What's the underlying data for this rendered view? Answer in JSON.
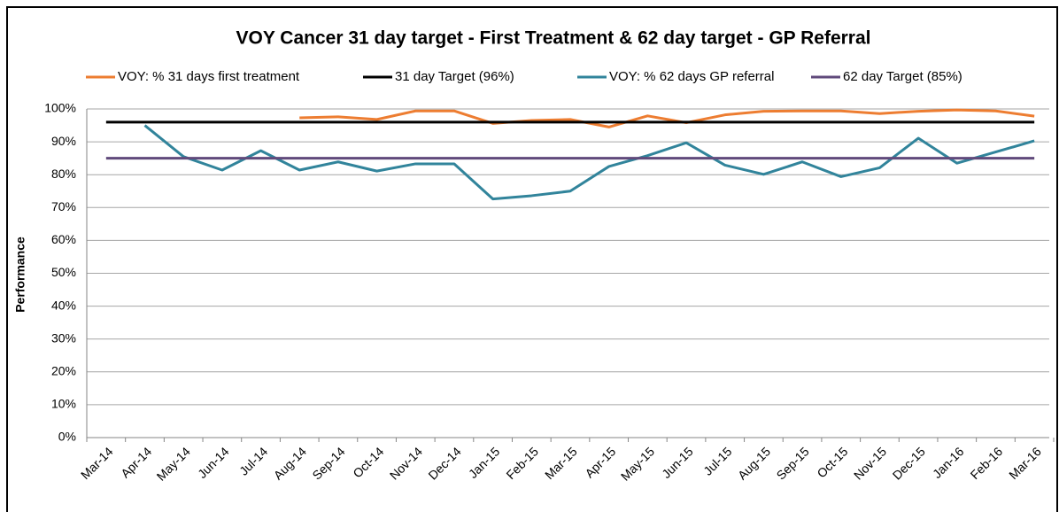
{
  "chart_data": {
    "type": "line",
    "title": "VOY Cancer 31 day target - First Treatment & 62 day target - GP Referral",
    "y_label": "Performance",
    "categories": [
      "Mar-14",
      "Apr-14",
      "May-14",
      "Jun-14",
      "Jul-14",
      "Aug-14",
      "Sep-14",
      "Oct-14",
      "Nov-14",
      "Dec-14",
      "Jan-15",
      "Feb-15",
      "Mar-15",
      "Apr-15",
      "May-15",
      "Jun-15",
      "Jul-15",
      "Aug-15",
      "Sep-15",
      "Oct-15",
      "Nov-15",
      "Dec-15",
      "Jan-16",
      "Feb-16",
      "Mar-16"
    ],
    "series": [
      {
        "name": "VOY: % 31 days first treatment",
        "color": "#ed7d31",
        "values": [
          null,
          null,
          null,
          null,
          null,
          97.3,
          97.6,
          96.8,
          99.4,
          99.4,
          95.6,
          96.5,
          96.8,
          94.5,
          97.9,
          95.8,
          98.2,
          99.3,
          99.4,
          99.4,
          98.6,
          99.3,
          99.7,
          99.4,
          97.8
        ]
      },
      {
        "name": "31 day Target (96%)",
        "color": "#000000",
        "values": [
          96,
          96,
          96,
          96,
          96,
          96,
          96,
          96,
          96,
          96,
          96,
          96,
          96,
          96,
          96,
          96,
          96,
          96,
          96,
          96,
          96,
          96,
          96,
          96,
          96
        ]
      },
      {
        "name": "VOY: % 62 days GP referral",
        "color": "#31849b",
        "values": [
          null,
          95,
          85.5,
          81.4,
          87.3,
          81.4,
          83.9,
          81.1,
          83.3,
          83.3,
          72.6,
          73.6,
          75.0,
          82.5,
          85.8,
          89.7,
          82.9,
          80.1,
          83.9,
          79.4,
          82.1,
          91.1,
          83.5,
          86.9,
          90.3
        ]
      },
      {
        "name": "62 day Target (85%)",
        "color": "#604a7b",
        "values": [
          85,
          85,
          85,
          85,
          85,
          85,
          85,
          85,
          85,
          85,
          85,
          85,
          85,
          85,
          85,
          85,
          85,
          85,
          85,
          85,
          85,
          85,
          85,
          85,
          85
        ]
      }
    ],
    "ylim": [
      0,
      100
    ],
    "yticks": [
      {
        "value": 0,
        "label": "0%"
      },
      {
        "value": 10,
        "label": "10%"
      },
      {
        "value": 20,
        "label": "20%"
      },
      {
        "value": 30,
        "label": "30%"
      },
      {
        "value": 40,
        "label": "40%"
      },
      {
        "value": 50,
        "label": "50%"
      },
      {
        "value": 60,
        "label": "60%"
      },
      {
        "value": 70,
        "label": "70%"
      },
      {
        "value": 80,
        "label": "80%"
      },
      {
        "value": 90,
        "label": "90%"
      },
      {
        "value": 100,
        "label": "100%"
      }
    ],
    "grid": true,
    "legend": "top"
  }
}
